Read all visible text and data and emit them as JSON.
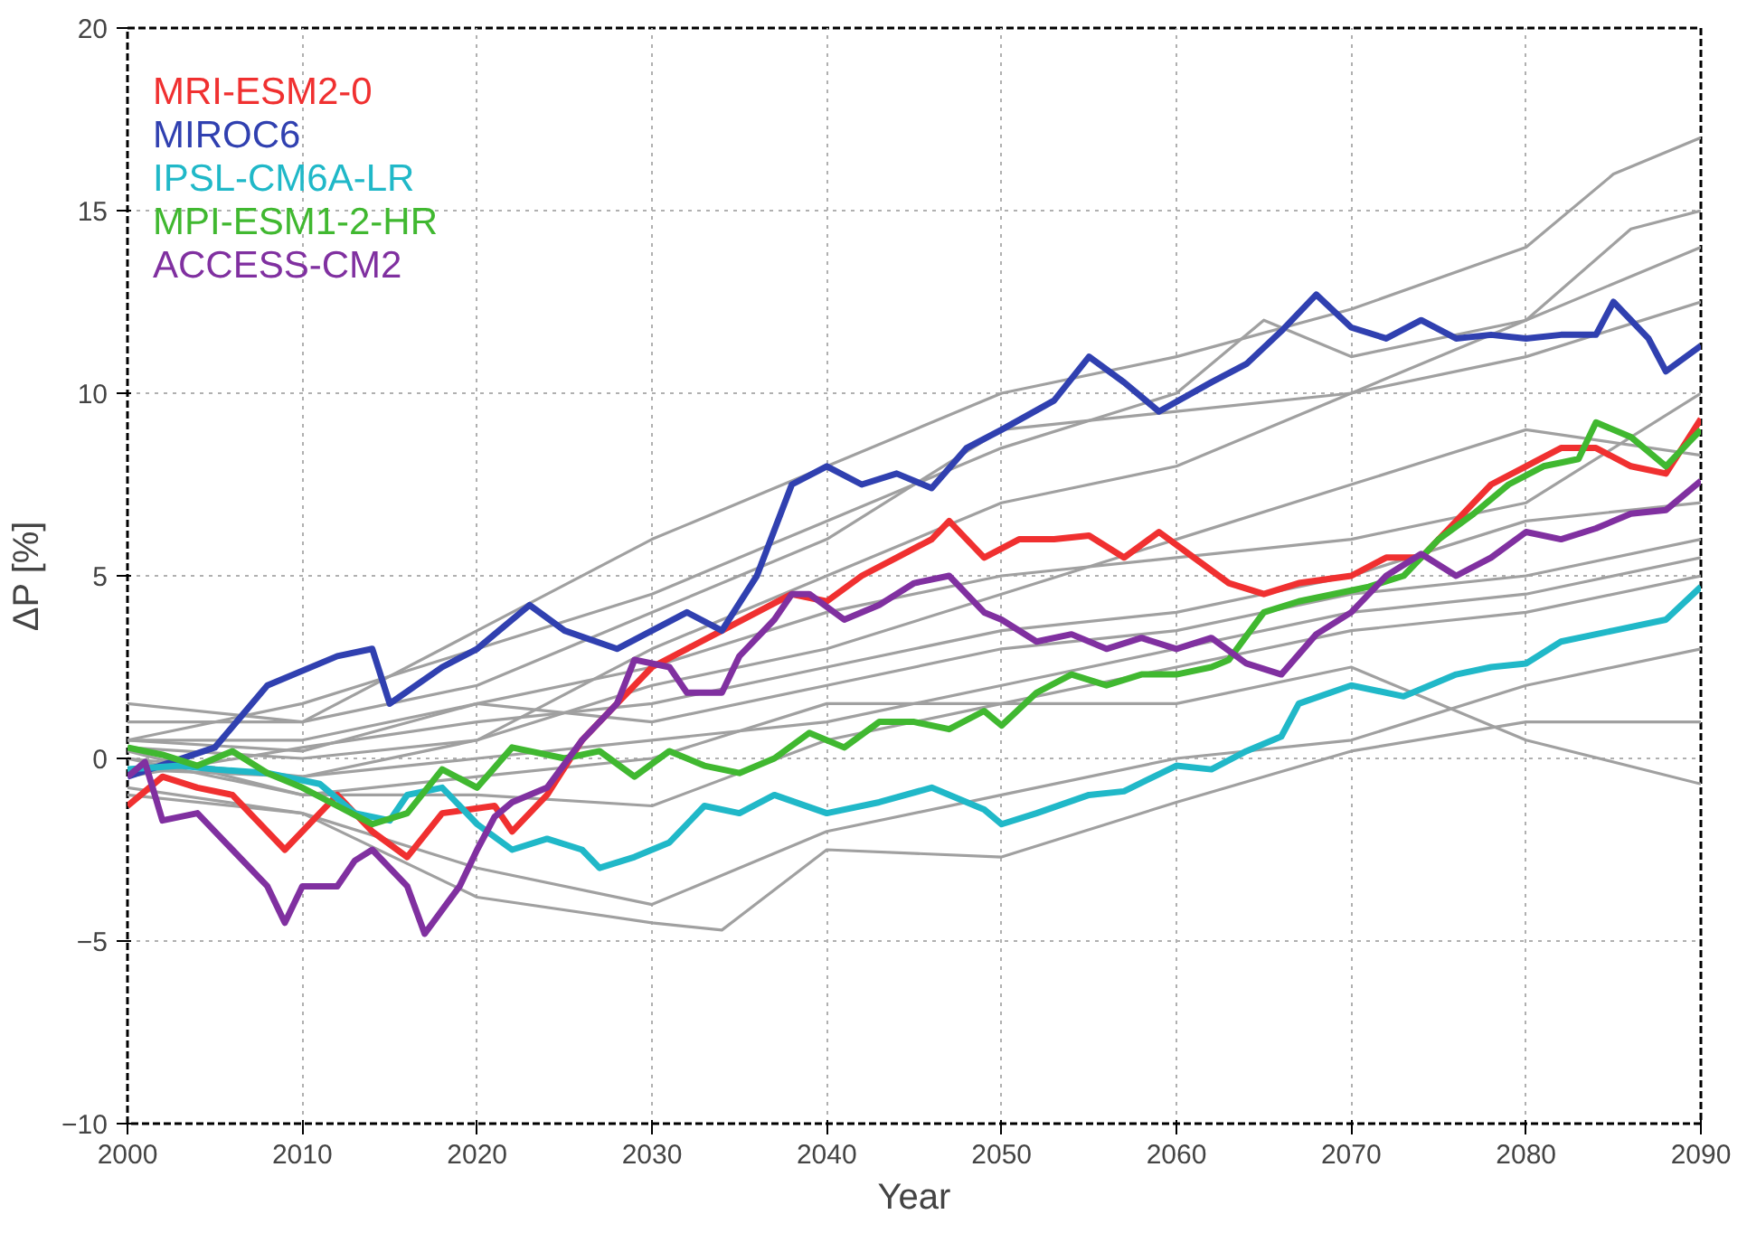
{
  "chart_data": {
    "type": "line",
    "xlabel": "Year",
    "ylabel": "ΔP [%]",
    "xlim": [
      2000,
      2090
    ],
    "ylim": [
      -10,
      20
    ],
    "xticks": [
      2000,
      2010,
      2020,
      2030,
      2040,
      2050,
      2060,
      2070,
      2080,
      2090
    ],
    "yticks": [
      -10,
      -5,
      0,
      5,
      10,
      15,
      20
    ],
    "grid": true,
    "legend": "top left",
    "line_style": "solid",
    "series": [
      {
        "color": "#a0a0a0",
        "x": [
          2000,
          2010,
          2020,
          2030,
          2040,
          2050,
          2060,
          2070,
          2080,
          2085,
          2090
        ],
        "values": [
          1,
          1,
          3.5,
          6,
          8,
          10,
          11,
          12.3,
          14,
          16,
          17
        ]
      },
      {
        "color": "#a0a0a0",
        "x": [
          2000,
          2010,
          2020,
          2030,
          2040,
          2050,
          2060,
          2065,
          2070,
          2080,
          2086,
          2090
        ],
        "values": [
          0.5,
          1.5,
          3,
          4.5,
          6.5,
          8.5,
          10,
          12,
          11,
          12,
          14.5,
          15
        ]
      },
      {
        "color": "#a0a0a0",
        "x": [
          2000,
          2010,
          2020,
          2030,
          2040,
          2050,
          2060,
          2070,
          2080,
          2090
        ],
        "values": [
          1.5,
          1,
          2,
          4,
          6,
          9,
          9.5,
          10,
          12,
          14
        ]
      },
      {
        "color": "#a0a0a0",
        "x": [
          2000,
          2010,
          2020,
          2030,
          2040,
          2050,
          2060,
          2070,
          2080,
          2090
        ],
        "values": [
          0,
          -0.5,
          0.5,
          3,
          5,
          7,
          8,
          10,
          11,
          12.5
        ]
      },
      {
        "color": "#a0a0a0",
        "x": [
          2000,
          2010,
          2020,
          2030,
          2040,
          2050,
          2060,
          2070,
          2080,
          2090
        ],
        "values": [
          0.3,
          0,
          0.5,
          2,
          3,
          4.5,
          6,
          7.5,
          9,
          8.3
        ]
      },
      {
        "color": "#a0a0a0",
        "x": [
          2000,
          2010,
          2020,
          2030,
          2040,
          2050,
          2060,
          2070,
          2080,
          2090
        ],
        "values": [
          -0.5,
          0.3,
          1,
          1.5,
          2.5,
          3.5,
          4,
          5,
          6.5,
          7
        ]
      },
      {
        "color": "#a0a0a0",
        "x": [
          2000,
          2010,
          2020,
          2030,
          2040,
          2050,
          2060,
          2070,
          2080,
          2090
        ],
        "values": [
          0.5,
          0.5,
          1.5,
          1,
          2,
          3,
          3.5,
          4.5,
          5,
          6
        ]
      },
      {
        "color": "#a0a0a0",
        "x": [
          2000,
          2010,
          2020,
          2030,
          2040,
          2050,
          2060,
          2070,
          2080,
          2090
        ],
        "values": [
          -0.3,
          -0.5,
          0,
          0.5,
          1,
          2,
          3,
          4,
          4.5,
          5.5
        ]
      },
      {
        "color": "#a0a0a0",
        "x": [
          2000,
          2010,
          2020,
          2030,
          2040,
          2050,
          2060,
          2070,
          2080,
          2090
        ],
        "values": [
          0,
          -1,
          -0.5,
          0,
          1.5,
          1.5,
          2.5,
          3.5,
          4,
          5
        ]
      },
      {
        "color": "#a0a0a0",
        "x": [
          2000,
          2010,
          2020,
          2030,
          2040,
          2050,
          2060,
          2070,
          2080,
          2090
        ],
        "values": [
          -1,
          -1.5,
          -3,
          -4,
          -2,
          -1,
          0,
          0.5,
          2,
          3
        ]
      },
      {
        "color": "#a0a0a0",
        "x": [
          2000,
          2010,
          2020,
          2030,
          2034,
          2040,
          2050,
          2060,
          2070,
          2080,
          2090
        ],
        "values": [
          -0.8,
          -1.5,
          -3.8,
          -4.5,
          -4.7,
          -2.5,
          -2.7,
          -1.2,
          0.2,
          1,
          1
        ]
      },
      {
        "color": "#a0a0a0",
        "x": [
          2000,
          2010,
          2020,
          2030,
          2040,
          2050,
          2060,
          2070,
          2080,
          2090
        ],
        "values": [
          0.2,
          -1,
          -1,
          -1.3,
          0.5,
          1.5,
          1.5,
          2.5,
          0.5,
          -0.7
        ]
      },
      {
        "color": "#a0a0a0",
        "x": [
          2000,
          2010,
          2020,
          2030,
          2040,
          2050,
          2060,
          2070,
          2080,
          2090
        ],
        "values": [
          0.5,
          0.2,
          1.5,
          2.5,
          4,
          5,
          5.5,
          6,
          7,
          10
        ]
      },
      {
        "name": "MRI-ESM2-0",
        "color": "#f03030",
        "x": [
          2000,
          2002,
          2004,
          2006,
          2009,
          2012,
          2014,
          2016,
          2018,
          2021,
          2022,
          2024,
          2026,
          2028,
          2030,
          2032,
          2034,
          2036,
          2038,
          2040,
          2042,
          2044,
          2046,
          2047,
          2049,
          2051,
          2053,
          2055,
          2057,
          2059,
          2061,
          2063,
          2065,
          2067,
          2070,
          2072,
          2074,
          2076,
          2078,
          2080,
          2082,
          2084,
          2086,
          2088,
          2090
        ],
        "values": [
          -1.3,
          -0.5,
          -0.8,
          -1,
          -2.5,
          -1,
          -2,
          -2.7,
          -1.5,
          -1.3,
          -2,
          -1,
          0.5,
          1.5,
          2.5,
          3,
          3.5,
          4,
          4.5,
          4.3,
          5,
          5.5,
          6,
          6.5,
          5.5,
          6,
          6,
          6.1,
          5.5,
          6.2,
          5.5,
          4.8,
          4.5,
          4.8,
          5,
          5.5,
          5.5,
          6.5,
          7.5,
          8,
          8.5,
          8.5,
          8,
          7.8,
          9.3
        ]
      },
      {
        "name": "MIROC6",
        "color": "#3040b0",
        "x": [
          2000,
          2005,
          2008,
          2012,
          2014,
          2015,
          2018,
          2020,
          2023,
          2025,
          2028,
          2030,
          2032,
          2034,
          2036,
          2038,
          2040,
          2042,
          2044,
          2046,
          2048,
          2050,
          2053,
          2055,
          2057,
          2059,
          2062,
          2064,
          2066,
          2068,
          2070,
          2072,
          2074,
          2076,
          2078,
          2080,
          2082,
          2084,
          2085,
          2087,
          2088,
          2090
        ],
        "values": [
          -0.5,
          0.3,
          2,
          2.8,
          3,
          1.5,
          2.5,
          3,
          4.2,
          3.5,
          3,
          3.5,
          4,
          3.5,
          5,
          7.5,
          8,
          7.5,
          7.8,
          7.4,
          8.5,
          9,
          9.8,
          11,
          10.3,
          9.5,
          10.3,
          10.8,
          11.7,
          12.7,
          11.8,
          11.5,
          12,
          11.5,
          11.6,
          11.5,
          11.6,
          11.6,
          12.5,
          11.5,
          10.6,
          11.3
        ]
      },
      {
        "name": "IPSL-CM6A-LR",
        "color": "#20b8c8",
        "x": [
          2000,
          2003,
          2005,
          2008,
          2011,
          2013,
          2015,
          2016,
          2018,
          2020,
          2022,
          2024,
          2026,
          2027,
          2029,
          2031,
          2033,
          2035,
          2037,
          2040,
          2043,
          2046,
          2049,
          2050,
          2052,
          2055,
          2057,
          2060,
          2062,
          2064,
          2066,
          2067,
          2070,
          2073,
          2076,
          2078,
          2080,
          2082,
          2085,
          2088,
          2090
        ],
        "values": [
          -0.3,
          -0.2,
          -0.3,
          -0.4,
          -0.7,
          -1.5,
          -1.7,
          -1,
          -0.8,
          -1.8,
          -2.5,
          -2.2,
          -2.5,
          -3,
          -2.7,
          -2.3,
          -1.3,
          -1.5,
          -1,
          -1.5,
          -1.2,
          -0.8,
          -1.4,
          -1.8,
          -1.5,
          -1,
          -0.9,
          -0.2,
          -0.3,
          0.2,
          0.6,
          1.5,
          2,
          1.7,
          2.3,
          2.5,
          2.6,
          3.2,
          3.5,
          3.8,
          4.7
        ]
      },
      {
        "name": "MPI-ESM1-2-HR",
        "color": "#40b830",
        "x": [
          2000,
          2002,
          2004,
          2006,
          2008,
          2010,
          2012,
          2014,
          2016,
          2018,
          2020,
          2022,
          2025,
          2027,
          2029,
          2031,
          2033,
          2035,
          2037,
          2039,
          2041,
          2043,
          2045,
          2047,
          2049,
          2050,
          2052,
          2054,
          2056,
          2058,
          2060,
          2062,
          2063,
          2065,
          2067,
          2069,
          2071,
          2073,
          2075,
          2077,
          2079,
          2081,
          2083,
          2084,
          2086,
          2088,
          2090
        ],
        "values": [
          0.3,
          0.1,
          -0.2,
          0.2,
          -0.4,
          -0.8,
          -1.3,
          -1.8,
          -1.5,
          -0.3,
          -0.8,
          0.3,
          0,
          0.2,
          -0.5,
          0.2,
          -0.2,
          -0.4,
          0,
          0.7,
          0.3,
          1,
          1,
          0.8,
          1.3,
          0.9,
          1.8,
          2.3,
          2,
          2.3,
          2.3,
          2.5,
          2.7,
          4,
          4.3,
          4.5,
          4.7,
          5,
          6,
          6.7,
          7.5,
          8,
          8.2,
          9.2,
          8.8,
          8,
          9
        ]
      },
      {
        "name": "ACCESS-CM2",
        "color": "#8030a0",
        "x": [
          2000,
          2001,
          2002,
          2004,
          2006,
          2008,
          2009,
          2010,
          2012,
          2013,
          2014,
          2016,
          2017,
          2019,
          2020,
          2021,
          2022,
          2024,
          2026,
          2028,
          2029,
          2031,
          2032,
          2034,
          2035,
          2037,
          2038,
          2039,
          2041,
          2043,
          2045,
          2047,
          2049,
          2050,
          2052,
          2054,
          2056,
          2058,
          2060,
          2062,
          2064,
          2066,
          2068,
          2070,
          2072,
          2074,
          2076,
          2078,
          2080,
          2082,
          2084,
          2086,
          2088,
          2090
        ],
        "values": [
          -0.5,
          -0.1,
          -1.7,
          -1.5,
          -2.5,
          -3.5,
          -4.5,
          -3.5,
          -3.5,
          -2.8,
          -2.5,
          -3.5,
          -4.8,
          -3.5,
          -2.5,
          -1.6,
          -1.2,
          -0.8,
          0.5,
          1.5,
          2.7,
          2.5,
          1.8,
          1.8,
          2.8,
          3.8,
          4.5,
          4.5,
          3.8,
          4.2,
          4.8,
          5,
          4,
          3.8,
          3.2,
          3.4,
          3,
          3.3,
          3,
          3.3,
          2.6,
          2.3,
          3.4,
          4,
          5,
          5.6,
          5,
          5.5,
          6.2,
          6,
          6.3,
          6.7,
          6.8,
          7.6
        ]
      }
    ]
  }
}
